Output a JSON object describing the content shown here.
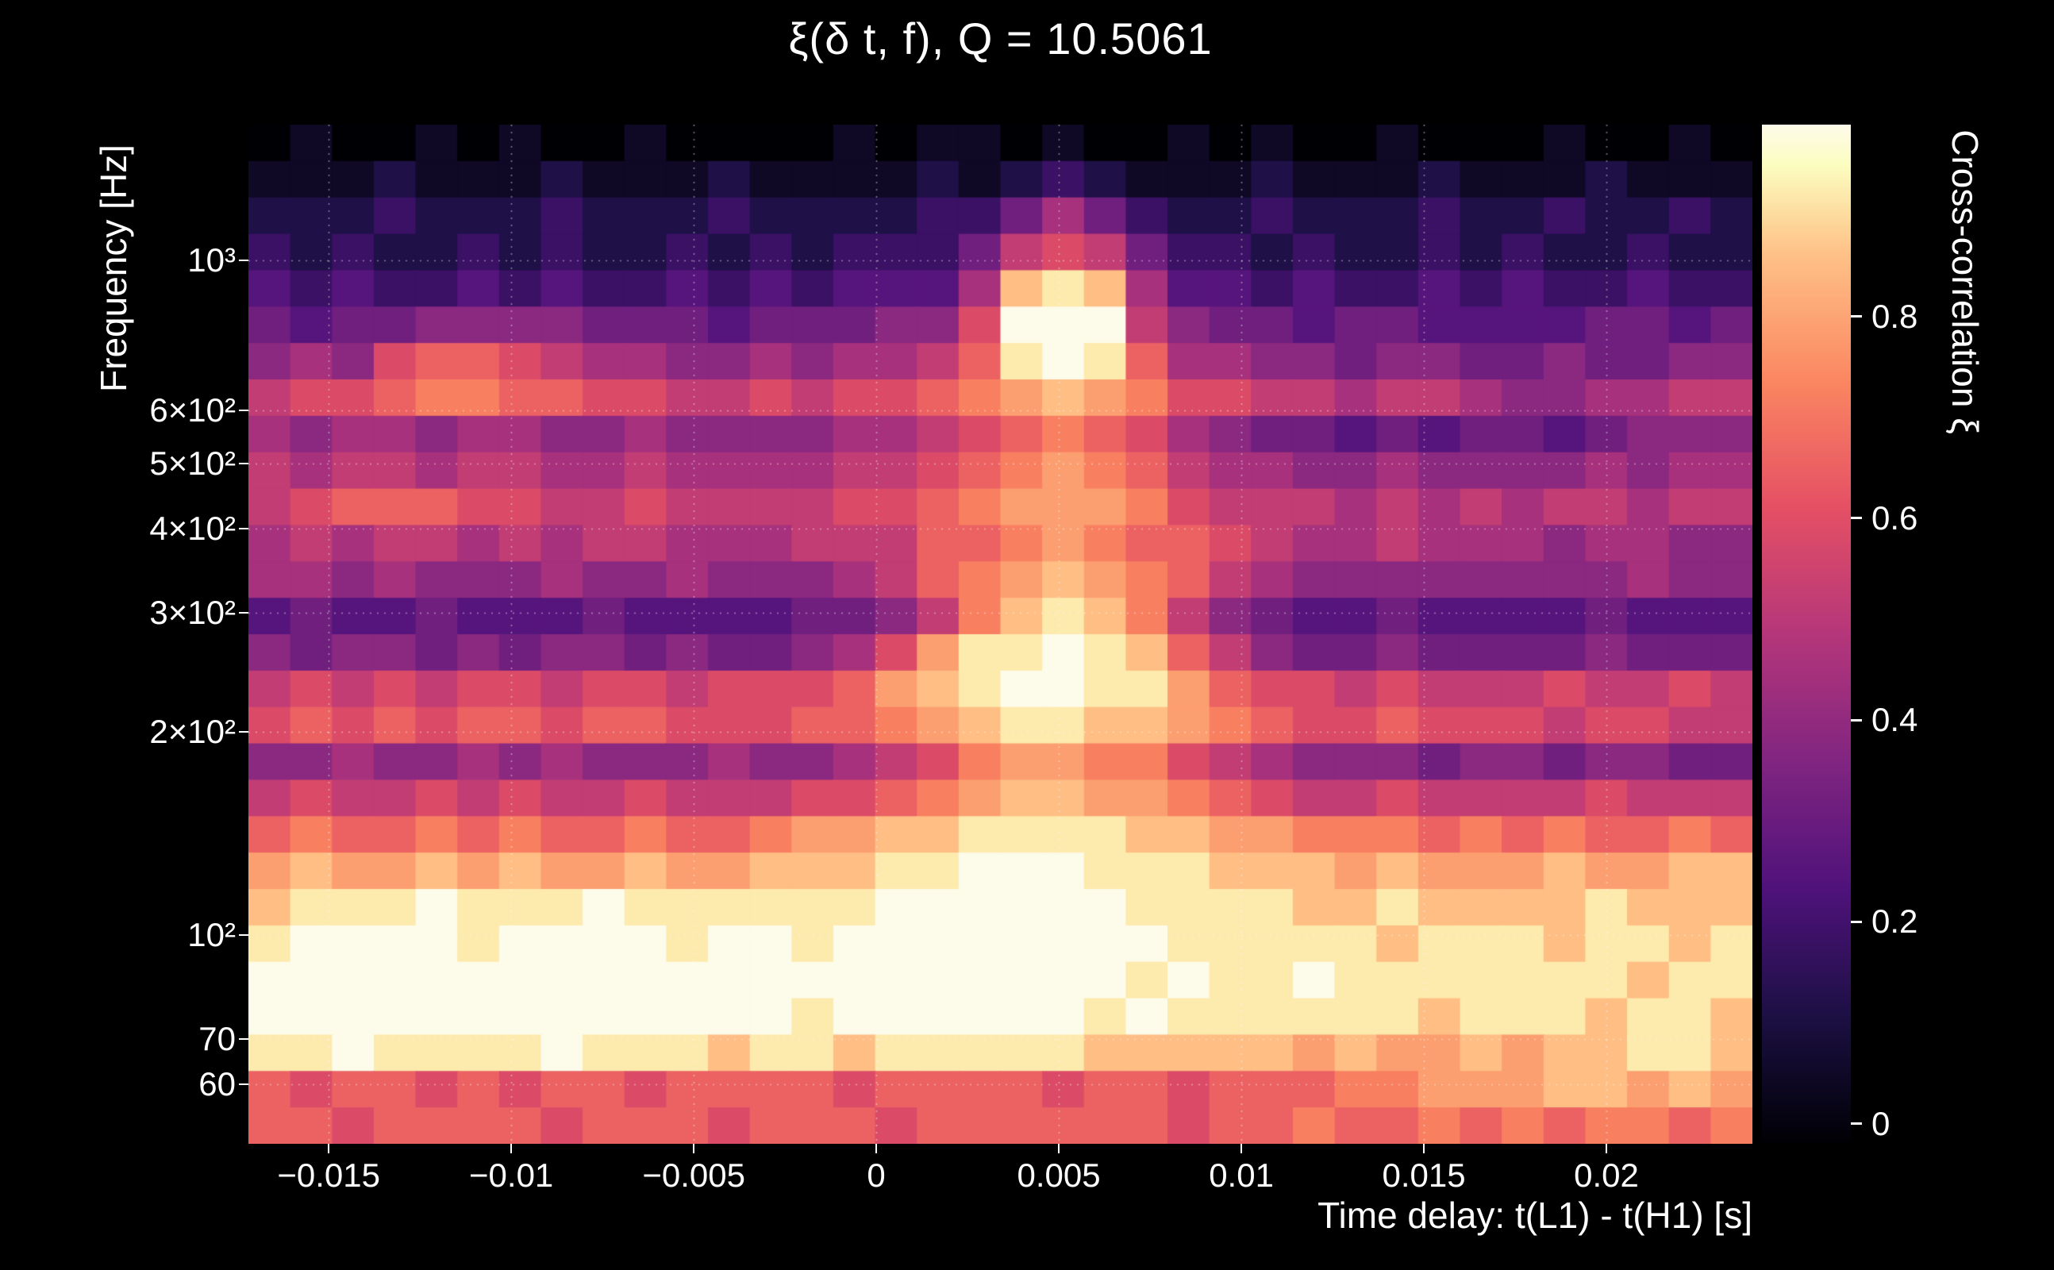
{
  "colors": {
    "background": "#000000",
    "text": "#ffffff",
    "grid": "#ffffff"
  },
  "chart_data": {
    "type": "heatmap",
    "title": "ξ(δ t, f), Q = 10.5061",
    "xlabel": "Time delay: t(L1) - t(H1) [s]",
    "ylabel": "Frequency [Hz]",
    "colorbar_label": "Cross-correlation ξ",
    "x_range": [
      -0.0172,
      0.024
    ],
    "y_range": [
      49,
      1590
    ],
    "y_scale": "log",
    "zlim": [
      -0.02,
      0.99
    ],
    "x_ticks": [
      -0.015,
      -0.01,
      -0.005,
      0,
      0.005,
      0.01,
      0.015,
      0.02
    ],
    "x_tick_labels": [
      "−0.015",
      "−0.01",
      "−0.005",
      "0",
      "0.005",
      "0.01",
      "0.015",
      "0.02"
    ],
    "y_ticks": [
      60,
      70,
      100,
      200,
      300,
      400,
      500,
      600,
      1000
    ],
    "y_tick_labels": [
      "60",
      "70",
      "10²",
      "2×10²",
      "3×10²",
      "4×10²",
      "5×10²",
      "6×10²",
      "10³"
    ],
    "colorbar_ticks": [
      0,
      0.2,
      0.4,
      0.6,
      0.8
    ],
    "colorbar_tick_labels": [
      "0",
      "0.2",
      "0.4",
      "0.6",
      "0.8"
    ],
    "grid_on": true,
    "legend": "colorbar-right",
    "colormap": "magma",
    "colormap_stops": [
      [
        0.0,
        "#000004"
      ],
      [
        0.125,
        "#1c1044"
      ],
      [
        0.25,
        "#4f127b"
      ],
      [
        0.375,
        "#812581"
      ],
      [
        0.5,
        "#b5367a"
      ],
      [
        0.625,
        "#e55064"
      ],
      [
        0.75,
        "#fb8761"
      ],
      [
        0.875,
        "#fec287"
      ],
      [
        0.96,
        "#fcfdbf"
      ],
      [
        1.0,
        "#fdfbea"
      ]
    ],
    "value_encoding": "Each grid row is 36 hex digits (columns span x_range left to right); cross-correlation ξ ≈ digit/15. Rows are ordered top (high frequency) to bottom (low frequency); row center frequencies in row_frequencies_hz.",
    "row_frequencies_hz": [
      1497,
      1322,
      1167,
      1031,
      911,
      804,
      710,
      627,
      554,
      489,
      432,
      382,
      337,
      298,
      263,
      232,
      205,
      181,
      160,
      141,
      125,
      110,
      97,
      86,
      76,
      67,
      59,
      52
    ],
    "grid": [
      "010010100100001011010010100100010010",
      "111211121112111121232111211121112111",
      "222322232223222233575322322232232232",
      "323223232232323335898533232232322322",
      "434334343343434447ded744343343433433",
      "545566665554555669fff865545544445545",
      "6769aa98776676778aefea77665665565566",
      "899abbaa99889899abcdcb99887887667788",
      "767767766766667789aba976554545545666",
      "87887887787777889abcba87766766667677",
      "89aaa99889888899abcccb98887878788788",
      "7878878788777888aabcbaa9877877767766",
      "7767666766766678abcdcba8766666666766",
      "45445444544445568bdedb86544544445444",
      "6566565665655679ceefeda8655655556555",
      "89898998998999acdeffeeca998988898898",
      "9a9a9aa9aa999aabcdeeddcba99a99989988",
      "66766767666766789bccbb98766656656655",
      "898898988988899abcddccba988988889888",
      "abaababaabaabccddeeeeddccbbbababaaba",
      "cdccdcdccdccdddeefffeeedddcdcccdccdd",
      "deeefeeefeeeeeeffffffeeeeddeddddeddd",
      "effffeffffeffeffffffffeeeeedeeedeede",
      "fffffffffffffffffffffefeefeeeeeeedee",
      "fffffffffffffeffffffefeeeeeedeeedeed",
      "eefeeeefeeedeedeeeeedddddcdccdcddeed",
      "a9aa9a9aa9aaaa9aaaa9aa9aaabbcccddcdc",
      "aa9aaaa9aaa9aaa9aaaaaa9aabaabababbab"
    ]
  }
}
